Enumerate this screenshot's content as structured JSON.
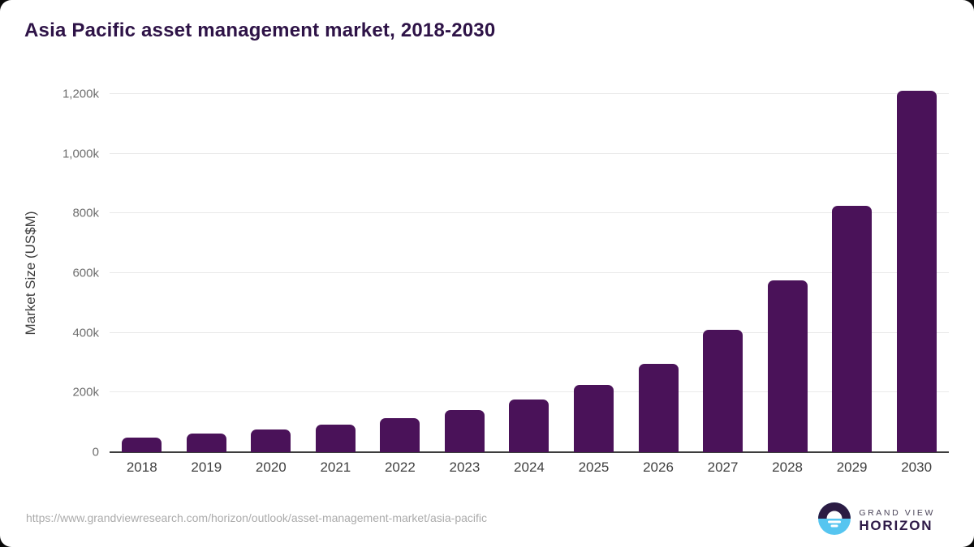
{
  "header": {
    "title": "Asia Pacific asset management market, 2018-2030"
  },
  "chart_data": {
    "type": "bar",
    "title": "Asia Pacific asset management market, 2018-2030",
    "categories": [
      "2018",
      "2019",
      "2020",
      "2021",
      "2022",
      "2023",
      "2024",
      "2025",
      "2026",
      "2027",
      "2028",
      "2029",
      "2030"
    ],
    "values": [
      48,
      62,
      77,
      93,
      113,
      140,
      176,
      226,
      297,
      410,
      576,
      825,
      1210
    ],
    "value_scale": "k (thousands, axis shows k suffix)",
    "xlabel": "",
    "ylabel": "Market Size (US$M)",
    "ylim": [
      0,
      1200
    ],
    "y_ticks": [
      {
        "label": "0",
        "value": 0
      },
      {
        "label": "200k",
        "value": 200
      },
      {
        "label": "400k",
        "value": 400
      },
      {
        "label": "600k",
        "value": 600
      },
      {
        "label": "800k",
        "value": 800
      },
      {
        "label": "1,000k",
        "value": 1000
      },
      {
        "label": "1,200k",
        "value": 1200
      }
    ],
    "grid": "horizontal",
    "legend": "none",
    "bar_color": "#4a1259"
  },
  "footer": {
    "source_url": "https://www.grandviewresearch.com/horizon/outlook/asset-management-market/asia-pacific",
    "logo": {
      "line1": "GRAND VIEW",
      "line2": "HORIZON"
    }
  },
  "colors": {
    "title_text": "#2e1347",
    "bar_fill": "#4a1259",
    "gridline": "#e9e9e9",
    "axis_line": "#3d3d3d",
    "y_tick_text": "#6e6e6e",
    "x_tick_text": "#3f3f3f",
    "source_url_text": "#ababab",
    "logo_dark": "#2b1b43",
    "logo_blue": "#56c5f0"
  }
}
